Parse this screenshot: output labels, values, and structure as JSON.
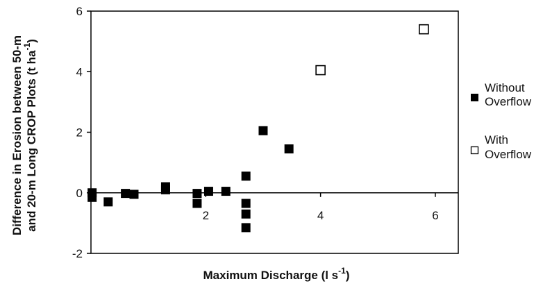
{
  "chart_data": {
    "type": "scatter",
    "xlabel": "Maximum Discharge (l s",
    "xlabel_sup": "-1",
    "xlabel_end": ")",
    "ylabel_line1": "Difference in Erosion between 50-m",
    "ylabel_line2": "and 20-m Long CROP Plots (t ha",
    "ylabel_sup": "-1",
    "ylabel_end": ")",
    "xlim": [
      0,
      6.4
    ],
    "ylim": [
      -2,
      6
    ],
    "x_ticks": [
      {
        "value": 2,
        "label": "2"
      },
      {
        "value": 4,
        "label": "4"
      },
      {
        "value": 6,
        "label": "6"
      }
    ],
    "y_ticks": [
      {
        "value": -2,
        "label": "-2"
      },
      {
        "value": 0,
        "label": "0"
      },
      {
        "value": 2,
        "label": "2"
      },
      {
        "value": 4,
        "label": "4"
      },
      {
        "value": 6,
        "label": "6"
      }
    ],
    "grid": false,
    "legend_position": "right",
    "series": [
      {
        "name_line1": "Without",
        "name_line2": "Overflow",
        "marker": "filled-square",
        "color": "#000000",
        "points": [
          {
            "x": 0.02,
            "y": 0.0
          },
          {
            "x": 0.02,
            "y": -0.15
          },
          {
            "x": 0.3,
            "y": -0.3
          },
          {
            "x": 0.6,
            "y": -0.02
          },
          {
            "x": 0.75,
            "y": -0.05
          },
          {
            "x": 1.3,
            "y": 0.2
          },
          {
            "x": 1.3,
            "y": 0.1
          },
          {
            "x": 1.85,
            "y": -0.02
          },
          {
            "x": 1.85,
            "y": -0.35
          },
          {
            "x": 2.05,
            "y": 0.05
          },
          {
            "x": 2.35,
            "y": 0.05
          },
          {
            "x": 2.7,
            "y": 0.55
          },
          {
            "x": 2.7,
            "y": -0.35
          },
          {
            "x": 2.7,
            "y": -0.7
          },
          {
            "x": 2.7,
            "y": -1.15
          },
          {
            "x": 3.0,
            "y": 2.05
          },
          {
            "x": 3.45,
            "y": 1.45
          }
        ]
      },
      {
        "name_line1": "With",
        "name_line2": "Overflow",
        "marker": "open-square",
        "color": "#000000",
        "points": [
          {
            "x": 4.0,
            "y": 4.05
          },
          {
            "x": 5.8,
            "y": 5.4
          }
        ]
      }
    ]
  }
}
